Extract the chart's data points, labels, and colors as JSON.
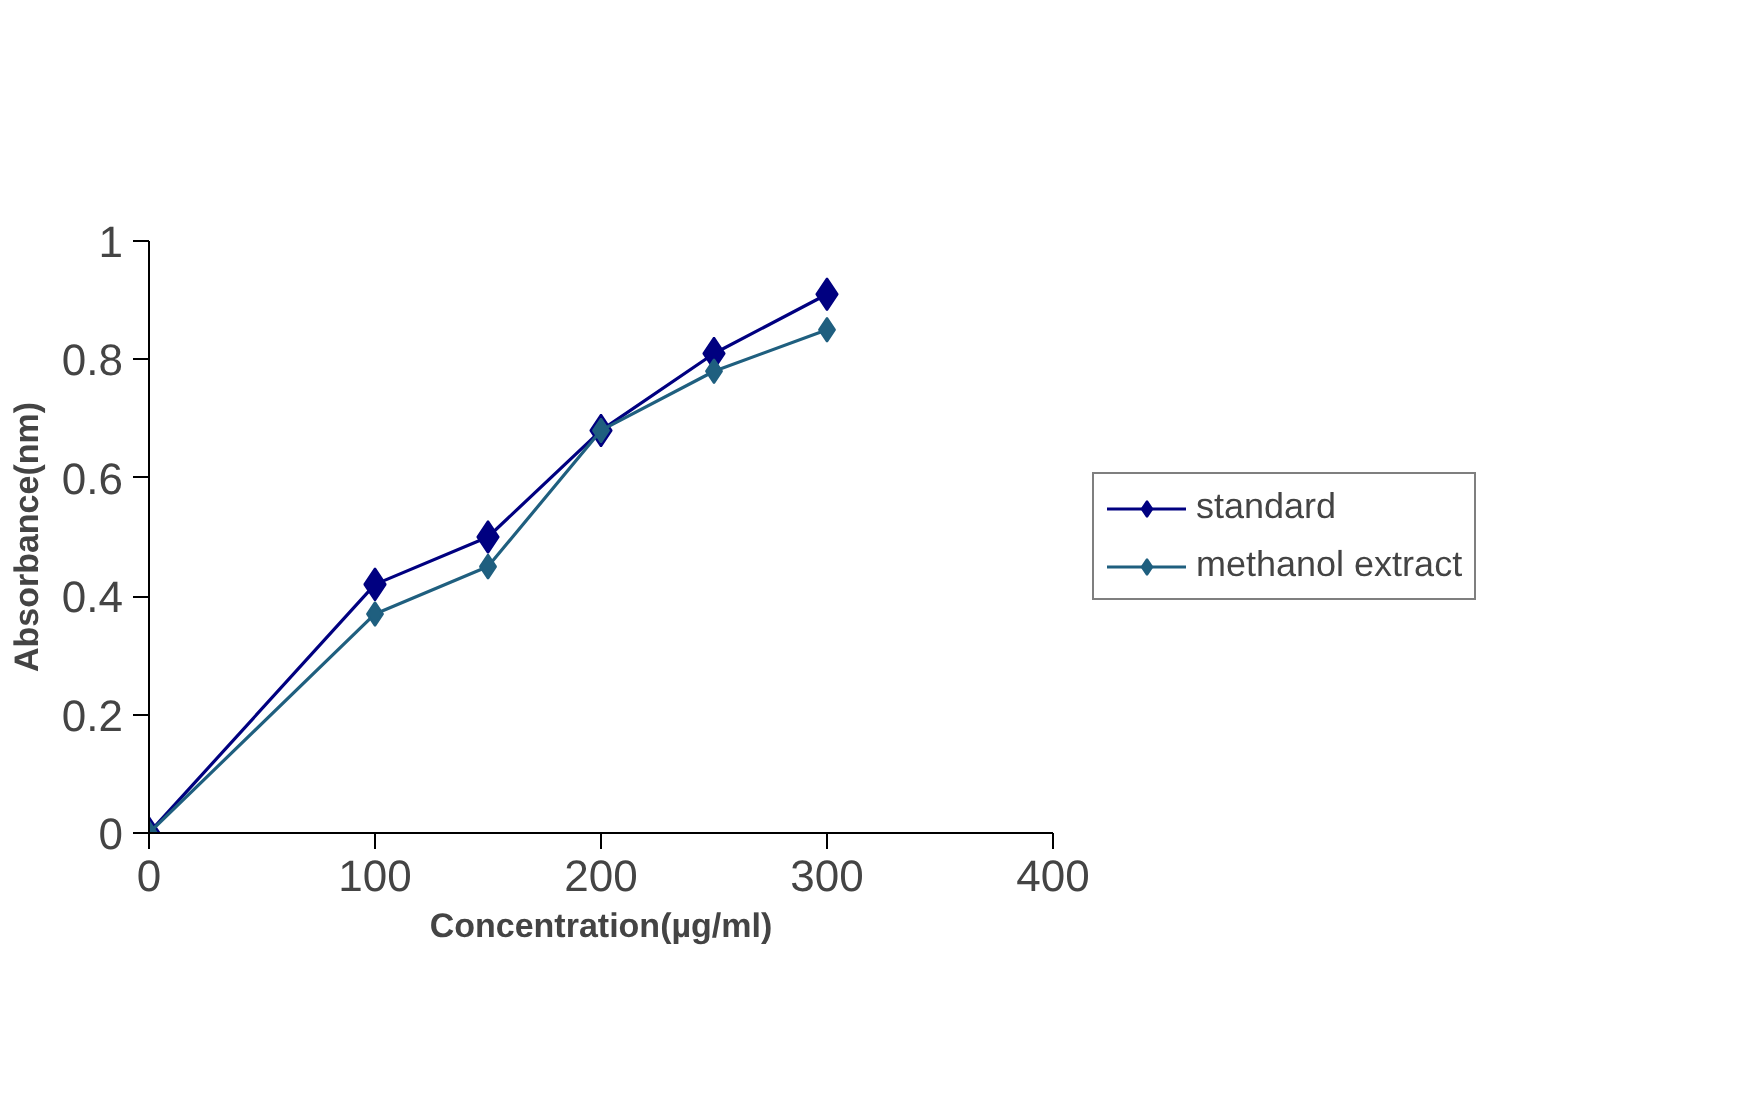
{
  "chart_data": {
    "type": "line",
    "xlabel": "Concentration(µg/ml)",
    "ylabel": "Absorbance(nm)",
    "x": [
      0,
      100,
      150,
      200,
      250,
      300
    ],
    "series": [
      {
        "name": "standard",
        "color": "#000080",
        "values": [
          0,
          0.42,
          0.5,
          0.68,
          0.81,
          0.91
        ]
      },
      {
        "name": "methanol extract",
        "color": "#1f5f7f",
        "values": [
          0,
          0.37,
          0.45,
          0.68,
          0.78,
          0.85
        ]
      }
    ],
    "xlim": [
      0,
      400
    ],
    "xticks": [
      0,
      100,
      200,
      300,
      400
    ],
    "ylim": [
      0,
      1
    ],
    "yticks": [
      0,
      0.2,
      0.4,
      0.6,
      0.8,
      1
    ],
    "grid": false,
    "legend": "right",
    "marker": "diamond",
    "line_style": "solid"
  }
}
